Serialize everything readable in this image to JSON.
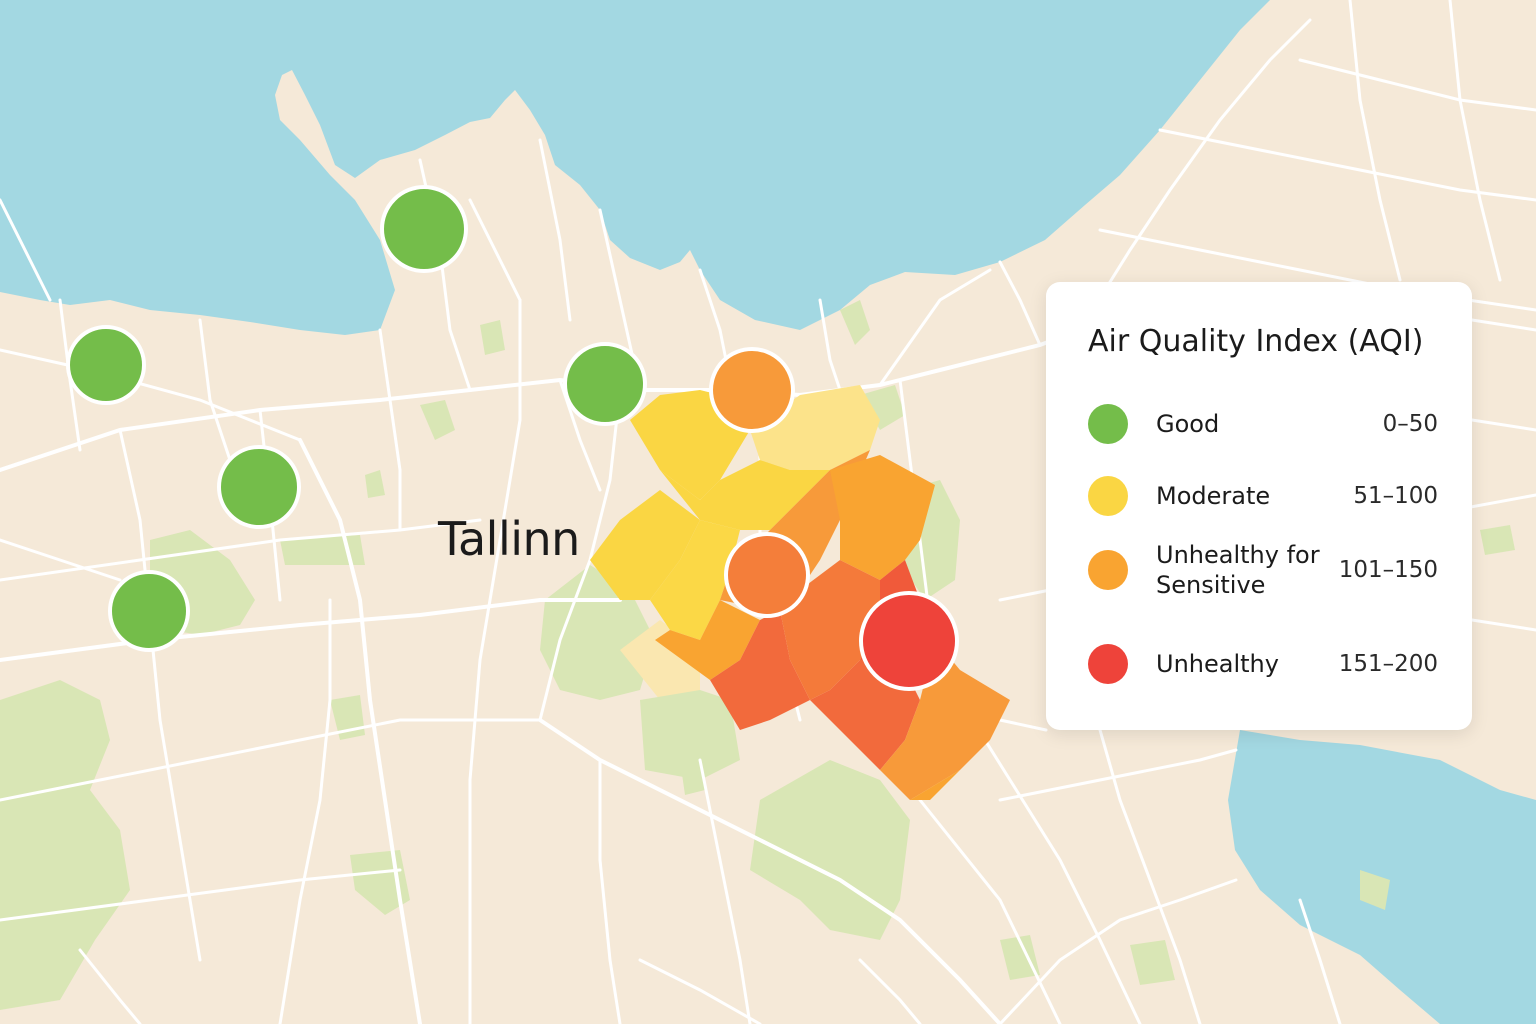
{
  "map": {
    "city_label": "Tallinn",
    "colors": {
      "land": "#f5e9d8",
      "water": "#a3d8e2",
      "park": "#d9e6b5",
      "road": "#ffffff"
    },
    "markers": [
      {
        "name": "station-marker-good-1",
        "aqi_category": "Good"
      },
      {
        "name": "station-marker-good-2",
        "aqi_category": "Good"
      },
      {
        "name": "station-marker-good-3",
        "aqi_category": "Good"
      },
      {
        "name": "station-marker-good-4",
        "aqi_category": "Good"
      },
      {
        "name": "station-marker-good-5",
        "aqi_category": "Good"
      },
      {
        "name": "station-marker-usg-1",
        "aqi_category": "Unhealthy for Sensitive"
      },
      {
        "name": "station-marker-usg-2",
        "aqi_category": "Unhealthy for Sensitive"
      },
      {
        "name": "station-marker-unhealthy-1",
        "aqi_category": "Unhealthy"
      }
    ]
  },
  "legend": {
    "title": "Air Quality Index (AQI)",
    "items": [
      {
        "label": "Good",
        "range": "0–50",
        "color": "#74bd4a"
      },
      {
        "label": "Moderate",
        "range": "51–100",
        "color": "#fad643"
      },
      {
        "label": "Unhealthy for Sensitive",
        "range": "101–150",
        "color": "#f9a431"
      },
      {
        "label": "Unhealthy",
        "range": "151–200",
        "color": "#ee433a"
      }
    ]
  }
}
